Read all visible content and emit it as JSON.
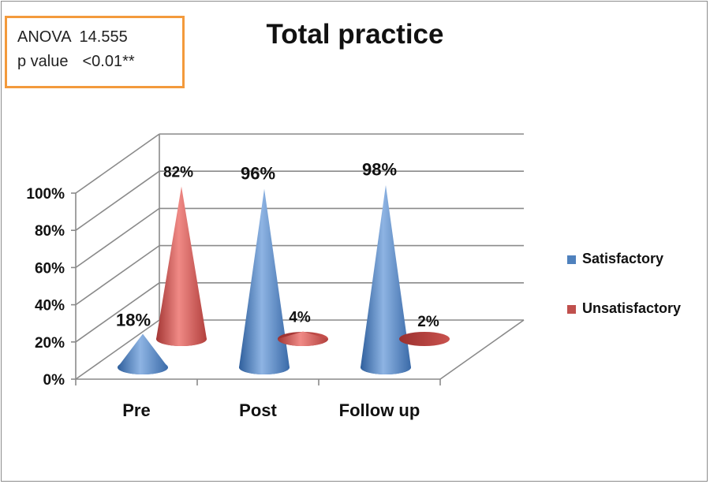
{
  "stats": {
    "anova_label": "ANOVA",
    "anova_value": "14.555",
    "p_label": "p value",
    "p_value": "<0.01**"
  },
  "chart_data": {
    "type": "bar",
    "title": "Total practice",
    "categories": [
      "Pre",
      "Post",
      "Follow up"
    ],
    "series": [
      {
        "name": "Satisfactory",
        "values": [
          18,
          96,
          98
        ],
        "labels": [
          "18%",
          "96%",
          "98%"
        ],
        "color": "#4f81bd"
      },
      {
        "name": "Unsatisfactory",
        "values": [
          82,
          4,
          2
        ],
        "labels": [
          "82%",
          "4%",
          "2%"
        ],
        "color": "#c0504d"
      }
    ],
    "ylim": [
      0,
      100
    ],
    "yticks": [
      "0%",
      "20%",
      "40%",
      "60%",
      "80%",
      "100%"
    ],
    "mark_shape": "cone",
    "style": "3d",
    "grid": true,
    "legend_position": "right"
  }
}
